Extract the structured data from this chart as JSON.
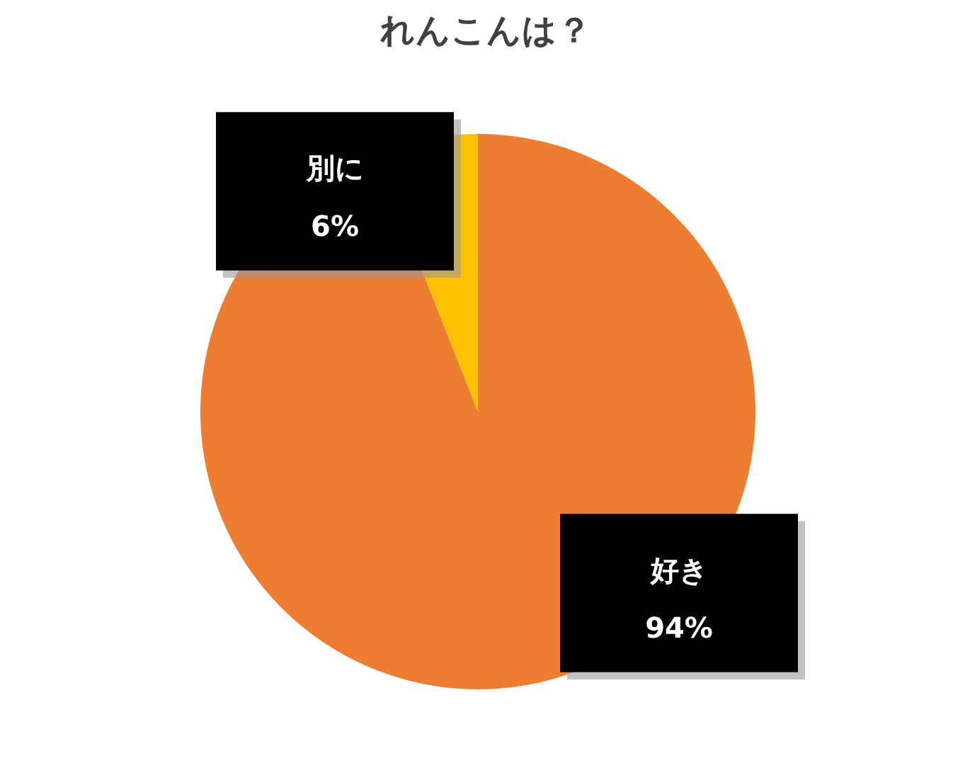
{
  "chart_data": {
    "type": "pie",
    "title": "れんこんは？",
    "categories": [
      "好き",
      "別に"
    ],
    "values": [
      94,
      6
    ],
    "colors": [
      "#ed7d31",
      "#ffc000"
    ],
    "value_labels": [
      "94%",
      "6%"
    ],
    "legend": false
  }
}
